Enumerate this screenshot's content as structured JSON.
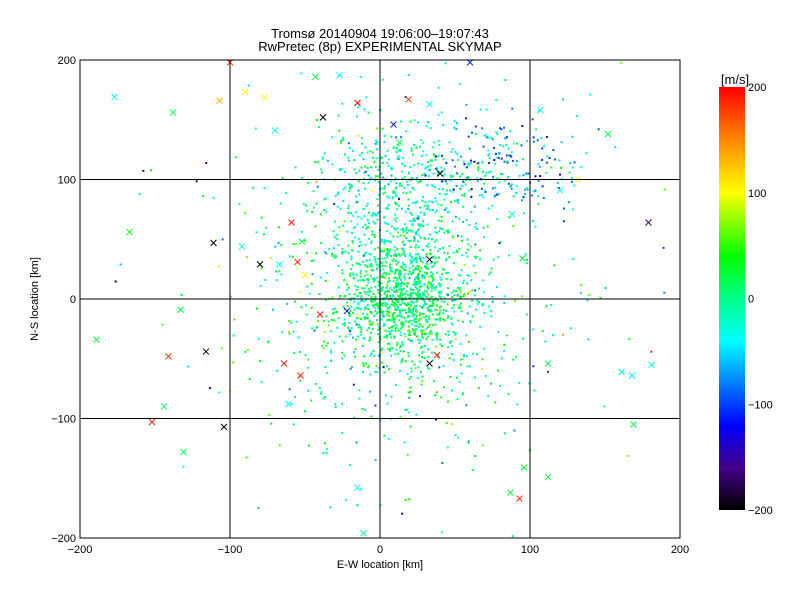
{
  "chart_data": {
    "type": "scatter",
    "title": "Tromsø 20140904 19:06:00–19:07:43",
    "subtitle": "RwPretec (8p) EXPERIMENTAL SKYMAP",
    "xlabel": "E-W location [km]",
    "ylabel": "N-S location [km]",
    "xlim": [
      -200,
      200
    ],
    "ylim": [
      -200,
      200
    ],
    "xticks": [
      "−200",
      "−100",
      "0",
      "100",
      "200"
    ],
    "yticks": [
      "−200",
      "−100",
      "0",
      "100",
      "200"
    ],
    "grid_values": [
      -100,
      0,
      100
    ],
    "colorbar": {
      "label": "[m/s]",
      "range": [
        -200,
        200
      ],
      "ticks": [
        "200",
        "100",
        "0",
        "−100",
        "−200"
      ],
      "tick_values": [
        200,
        100,
        0,
        -100,
        -200
      ],
      "stops": [
        {
          "v": 200,
          "c": "#ff0000"
        },
        {
          "v": 150,
          "c": "#ff8800"
        },
        {
          "v": 100,
          "c": "#ffff00"
        },
        {
          "v": 40,
          "c": "#00ff00"
        },
        {
          "v": 0,
          "c": "#00ff88"
        },
        {
          "v": -40,
          "c": "#00ffff"
        },
        {
          "v": -120,
          "c": "#0000ff"
        },
        {
          "v": -160,
          "c": "#440088"
        },
        {
          "v": -200,
          "c": "#000000"
        }
      ]
    },
    "cross_points": [
      [
        -177,
        169,
        -40
      ],
      [
        -138,
        156,
        20
      ],
      [
        -107,
        166,
        130
      ],
      [
        -90,
        173,
        100
      ],
      [
        -77,
        169,
        100
      ],
      [
        -70,
        141,
        -40
      ],
      [
        -43,
        186,
        20
      ],
      [
        -27,
        187,
        -40
      ],
      [
        -38,
        152,
        -200
      ],
      [
        -15,
        164,
        200
      ],
      [
        13,
        131,
        20
      ],
      [
        19,
        167,
        180
      ],
      [
        9,
        146,
        -110
      ],
      [
        33,
        163,
        -40
      ],
      [
        40,
        105,
        -200
      ],
      [
        107,
        158,
        -40
      ],
      [
        132,
        100,
        100
      ],
      [
        152,
        138,
        20
      ],
      [
        179,
        64,
        -170
      ],
      [
        -167,
        56,
        40
      ],
      [
        -111,
        47,
        -200
      ],
      [
        -92,
        44,
        -30
      ],
      [
        -80,
        29,
        -200
      ],
      [
        -67,
        29,
        -40
      ],
      [
        -59,
        64,
        190
      ],
      [
        -55,
        31,
        190
      ],
      [
        -52,
        48,
        20
      ],
      [
        33,
        33,
        -200
      ],
      [
        -40,
        -13,
        190
      ],
      [
        -22,
        -10,
        -120
      ],
      [
        -189,
        -34,
        20
      ],
      [
        -133,
        -9,
        20
      ],
      [
        -141,
        -48,
        180
      ],
      [
        -116,
        -44,
        -200
      ],
      [
        33,
        -54,
        -200
      ],
      [
        38,
        -47,
        190
      ],
      [
        -53,
        -64,
        190
      ],
      [
        -64,
        -54,
        190
      ],
      [
        -61,
        -88,
        -40
      ],
      [
        -144,
        -90,
        10
      ],
      [
        -152,
        -103,
        190
      ],
      [
        -131,
        -128,
        10
      ],
      [
        -104,
        -107,
        -200
      ],
      [
        -15,
        -158,
        -30
      ],
      [
        -11,
        -196,
        -10
      ],
      [
        87,
        -162,
        20
      ],
      [
        93,
        -167,
        190
      ],
      [
        96,
        -141,
        20
      ],
      [
        112,
        -149,
        20
      ],
      [
        169,
        -105,
        20
      ],
      [
        161,
        -61,
        -30
      ],
      [
        168,
        -64,
        -30
      ],
      [
        181,
        -55,
        -30
      ],
      [
        112,
        -54,
        10
      ],
      [
        95,
        34,
        20
      ],
      [
        88,
        71,
        -40
      ],
      [
        120,
        91,
        -40
      ],
      [
        60,
        198,
        -110
      ],
      [
        -100,
        198,
        180
      ],
      [
        -50,
        20,
        100
      ]
    ],
    "dot_clusters": [
      {
        "center": [
          15,
          0
        ],
        "spread": [
          20,
          25
        ],
        "count": 900,
        "v_mean": 10,
        "v_sd": 25
      },
      {
        "center": [
          10,
          80
        ],
        "spread": [
          25,
          40
        ],
        "count": 500,
        "v_mean": -15,
        "v_sd": 25
      },
      {
        "center": [
          80,
          110
        ],
        "spread": [
          30,
          20
        ],
        "count": 220,
        "v_mean": -60,
        "v_sd": 40
      },
      {
        "center": [
          10,
          0
        ],
        "spread": [
          50,
          70
        ],
        "count": 600,
        "v_mean": 0,
        "v_sd": 40
      },
      {
        "center": [
          0,
          0
        ],
        "spread": [
          110,
          110
        ],
        "count": 90,
        "v_mean": 0,
        "v_sd": 90
      }
    ]
  }
}
